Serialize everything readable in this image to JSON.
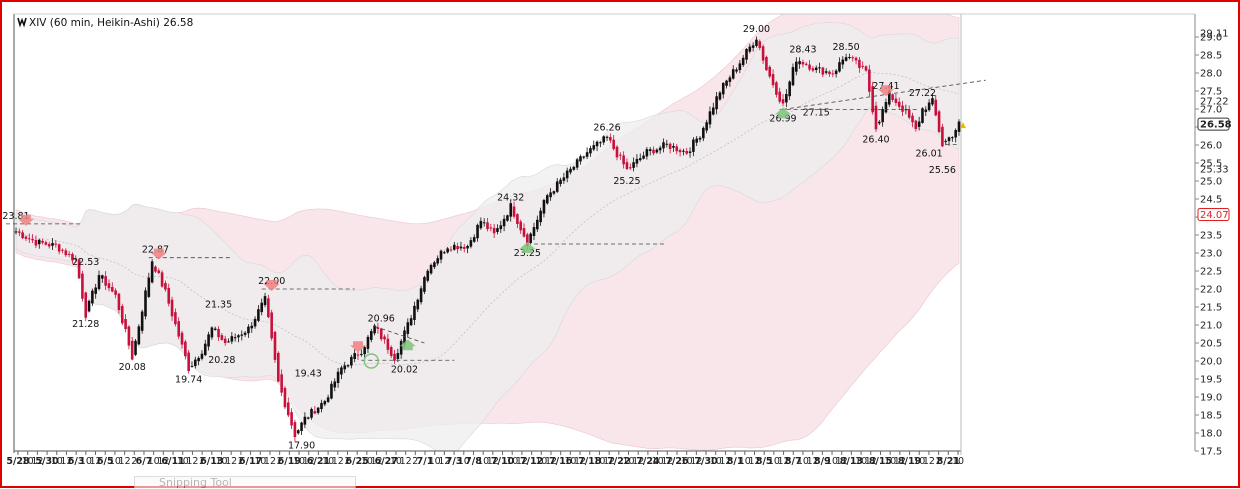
{
  "chart_data": {
    "type": "candlestick",
    "title": "XIV (60 min, Heikin-Ashi) 26.58",
    "style": "Heikin-Ashi",
    "ylim": [
      17.5,
      29.3
    ],
    "y_ticks": [
      "17.5",
      "18.0",
      "18.5",
      "19.0",
      "19.5",
      "20.0",
      "20.5",
      "21.0",
      "21.5",
      "22.0",
      "22.5",
      "23.0",
      "23.5",
      "24.0",
      "24.5",
      "25.0",
      "25.5",
      "26.0",
      "26.5",
      "27.0",
      "27.5",
      "28.0",
      "28.5",
      "29.0"
    ],
    "price_labels": [
      {
        "text": "29.11",
        "value": 29.11,
        "boxed": false
      },
      {
        "text": "27.22",
        "value": 27.22,
        "boxed": false
      },
      {
        "text": "26.58",
        "value": 26.58,
        "boxed": true,
        "bold": true
      },
      {
        "text": "25.33",
        "value": 25.33,
        "boxed": false
      },
      {
        "text": "24.07",
        "value": 24.07,
        "boxed": true,
        "color": "#e02020"
      }
    ],
    "x_ticks": [
      "5/28",
      "10",
      "12",
      "5/30",
      "10",
      "12",
      "6/3",
      "10",
      "12",
      "6/5",
      "10",
      "12",
      "2",
      "6/7",
      "10",
      "12",
      "6/11",
      "10",
      "12",
      "2",
      "6/13",
      "10",
      "12",
      "2",
      "6/17",
      "10",
      "12",
      "2",
      "6/19",
      "10",
      "12",
      "6/21",
      "10",
      "12",
      "2",
      "6/25",
      "10",
      "12",
      "6/27",
      "10",
      "12",
      "2",
      "7/1",
      "10",
      "12",
      "7/3",
      "10",
      "7/8",
      "10",
      "12",
      "7/10",
      "10",
      "12",
      "7/12",
      "10",
      "12",
      "7/16",
      "10",
      "12",
      "7/18",
      "10",
      "12",
      "7/22",
      "10",
      "12",
      "7/24",
      "10",
      "12",
      "7/26",
      "10",
      "12",
      "7/30",
      "10",
      "12",
      "8/1",
      "10",
      "12",
      "8/5",
      "10",
      "12",
      "8/7",
      "10",
      "12",
      "8/9",
      "10",
      "12",
      "8/13",
      "10",
      "12",
      "8/15",
      "10",
      "12",
      "8/19",
      "10",
      "12",
      "2",
      "8/21",
      "10"
    ],
    "price_path": [
      [
        0,
        23.6
      ],
      [
        6,
        23.3
      ],
      [
        12,
        23.2
      ],
      [
        18,
        22.8
      ],
      [
        21,
        21.3
      ],
      [
        25,
        22.4
      ],
      [
        30,
        21.8
      ],
      [
        35,
        20.1
      ],
      [
        41,
        22.8
      ],
      [
        45,
        21.9
      ],
      [
        52,
        19.8
      ],
      [
        56,
        20.3
      ],
      [
        59,
        20.9
      ],
      [
        63,
        20.5
      ],
      [
        70,
        20.9
      ],
      [
        75,
        21.7
      ],
      [
        79,
        19.4
      ],
      [
        84,
        17.95
      ],
      [
        87,
        18.4
      ],
      [
        93,
        18.9
      ],
      [
        98,
        19.8
      ],
      [
        104,
        20.3
      ],
      [
        108,
        20.95
      ],
      [
        114,
        20.1
      ],
      [
        118,
        21.0
      ],
      [
        124,
        22.6
      ],
      [
        130,
        23.2
      ],
      [
        136,
        23.2
      ],
      [
        140,
        23.9
      ],
      [
        144,
        23.5
      ],
      [
        149,
        24.3
      ],
      [
        154,
        23.3
      ],
      [
        160,
        24.6
      ],
      [
        166,
        25.2
      ],
      [
        172,
        25.8
      ],
      [
        178,
        26.2
      ],
      [
        184,
        25.3
      ],
      [
        190,
        25.8
      ],
      [
        196,
        26.0
      ],
      [
        202,
        25.8
      ],
      [
        206,
        26.3
      ],
      [
        212,
        27.5
      ],
      [
        218,
        28.3
      ],
      [
        223,
        29.0
      ],
      [
        226,
        28.1
      ],
      [
        231,
        27.1
      ],
      [
        235,
        28.4
      ],
      [
        241,
        28.1
      ],
      [
        246,
        28.0
      ],
      [
        250,
        28.5
      ],
      [
        256,
        28.0
      ],
      [
        259,
        26.5
      ],
      [
        263,
        27.4
      ],
      [
        268,
        26.9
      ],
      [
        271,
        26.4
      ],
      [
        273,
        27.0
      ],
      [
        276,
        27.2
      ],
      [
        279,
        26.0
      ],
      [
        282,
        26.3
      ],
      [
        284,
        26.58
      ]
    ],
    "annotations": [
      {
        "text": "23.81",
        "i": 0,
        "v": 23.81,
        "pos": "above"
      },
      {
        "text": "22.53",
        "i": 21,
        "v": 22.53,
        "pos": "above"
      },
      {
        "text": "22.87",
        "i": 42,
        "v": 22.87,
        "pos": "above"
      },
      {
        "text": "21.28",
        "i": 21,
        "v": 21.28,
        "pos": "below"
      },
      {
        "text": "20.08",
        "i": 35,
        "v": 20.08,
        "pos": "below"
      },
      {
        "text": "21.35",
        "i": 61,
        "v": 21.35,
        "pos": "above"
      },
      {
        "text": "19.74",
        "i": 52,
        "v": 19.74,
        "pos": "below"
      },
      {
        "text": "20.28",
        "i": 62,
        "v": 20.28,
        "pos": "below"
      },
      {
        "text": "22.00",
        "i": 77,
        "v": 22.0,
        "pos": "above"
      },
      {
        "text": "19.43",
        "i": 88,
        "v": 19.43,
        "pos": "above"
      },
      {
        "text": "17.90",
        "i": 86,
        "v": 17.9,
        "pos": "below"
      },
      {
        "text": "20.96",
        "i": 110,
        "v": 20.96,
        "pos": "above"
      },
      {
        "text": "20.02",
        "i": 117,
        "v": 20.02,
        "pos": "below"
      },
      {
        "text": "24.32",
        "i": 149,
        "v": 24.32,
        "pos": "above"
      },
      {
        "text": "23.25",
        "i": 154,
        "v": 23.25,
        "pos": "below"
      },
      {
        "text": "26.26",
        "i": 178,
        "v": 26.26,
        "pos": "above"
      },
      {
        "text": "25.25",
        "i": 184,
        "v": 25.25,
        "pos": "below"
      },
      {
        "text": "29.00",
        "i": 223,
        "v": 29.0,
        "pos": "above"
      },
      {
        "text": "28.43",
        "i": 237,
        "v": 28.43,
        "pos": "above"
      },
      {
        "text": "28.50",
        "i": 250,
        "v": 28.5,
        "pos": "above"
      },
      {
        "text": "26.99",
        "i": 231,
        "v": 26.99,
        "pos": "below"
      },
      {
        "text": "27.15",
        "i": 241,
        "v": 27.15,
        "pos": "below"
      },
      {
        "text": "27.41",
        "i": 262,
        "v": 27.41,
        "pos": "above"
      },
      {
        "text": "27.22",
        "i": 273,
        "v": 27.22,
        "pos": "above"
      },
      {
        "text": "26.40",
        "i": 259,
        "v": 26.4,
        "pos": "below"
      },
      {
        "text": "26.01",
        "i": 275,
        "v": 26.01,
        "pos": "below"
      },
      {
        "text": "25.56",
        "i": 279,
        "v": 25.56,
        "pos": "below"
      }
    ],
    "colors": {
      "up": "#111111",
      "down": "#c8103c",
      "band_gray": "#ededed",
      "band_pink": "#f0d2da",
      "band_pink_light": "#f8e6ea",
      "grid_line": "#666666"
    },
    "grid": false
  },
  "footer": {
    "snipping_tool": "Snipping Tool"
  }
}
